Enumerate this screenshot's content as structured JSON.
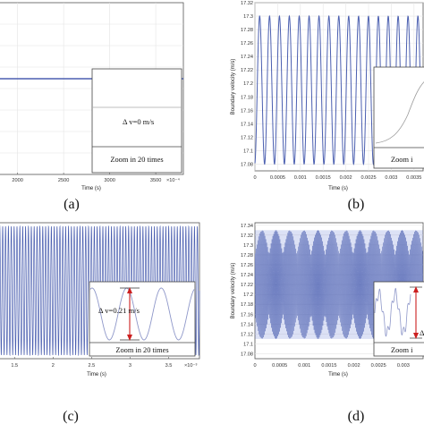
{
  "chart_data": [
    {
      "panel": "(a)",
      "type": "line",
      "xlabel": "Time (s)",
      "x_ticks": [
        "2000",
        "2500",
        "3000",
        "3500"
      ],
      "x_multiplier": "×10⁻⁴",
      "xlim": [
        1800,
        3800
      ],
      "series": [
        {
          "x": [
            1800,
            3800
          ],
          "y": [
            1,
            1
          ]
        }
      ],
      "inset": {
        "delta_label": "Δ v=0 m/s",
        "zoom_label": "Zoom in 20 times"
      },
      "colors": {
        "line": "#4b5fb0"
      }
    },
    {
      "panel": "(b)",
      "type": "line",
      "ylabel": "Boundary velocity (m/s)",
      "xlabel": "Time (s)",
      "y_ticks": [
        "17.08",
        "17.1",
        "17.12",
        "17.14",
        "17.16",
        "17.18",
        "17.2",
        "17.22",
        "17.24",
        "17.26",
        "17.28",
        "17.3",
        "17.32"
      ],
      "x_ticks": [
        "0",
        "0.0005",
        "0.001",
        "0.0015",
        "0.002",
        "0.0025",
        "0.003",
        "0.0035"
      ],
      "ylim": [
        17.07,
        17.32
      ],
      "xlim": [
        0,
        0.0037
      ],
      "series": [
        {
          "form": "sinusoid",
          "mean": 17.19,
          "amplitude": 0.11,
          "cycles": 17
        }
      ],
      "inset": {
        "zoom_label": "Zoom i"
      },
      "colors": {
        "line": "#4b5fb0"
      }
    },
    {
      "panel": "(c)",
      "type": "line",
      "xlabel": "Time (s)",
      "x_ticks": [
        "1.5",
        "2",
        "2.5",
        "3",
        "3.5"
      ],
      "x_multiplier": "×10⁻³",
      "xlim": [
        1.3,
        3.9
      ],
      "series": [
        {
          "form": "sinusoid",
          "cycles": 70
        }
      ],
      "inset": {
        "delta_label": "Δ v=0.21 m/s",
        "zoom_label": "Zoom in 20 times"
      },
      "colors": {
        "line": "#4b5fb0",
        "arrow": "#cc1f1f"
      }
    },
    {
      "panel": "(d)",
      "type": "line",
      "ylabel": "Boundary velocity (m/s)",
      "xlabel": "Time (s)",
      "y_ticks": [
        "17.08",
        "17.1",
        "17.12",
        "17.14",
        "17.16",
        "17.18",
        "17.2",
        "17.22",
        "17.24",
        "17.26",
        "17.28",
        "17.3",
        "17.32",
        "17.34"
      ],
      "x_ticks": [
        "0",
        "0.0005",
        "0.001",
        "0.0015",
        "0.002",
        "0.0025",
        "0.003"
      ],
      "ylim": [
        17.07,
        17.345
      ],
      "xlim": [
        0,
        0.0034
      ],
      "series": [
        {
          "form": "dense oscillation",
          "max": 17.33,
          "min": 17.11
        }
      ],
      "inset": {
        "delta_label": "Δ",
        "zoom_label": "Zoom i"
      },
      "colors": {
        "line": "#4b5fb0",
        "fill": "#3b57c8",
        "arrow": "#cc1f1f"
      }
    }
  ]
}
